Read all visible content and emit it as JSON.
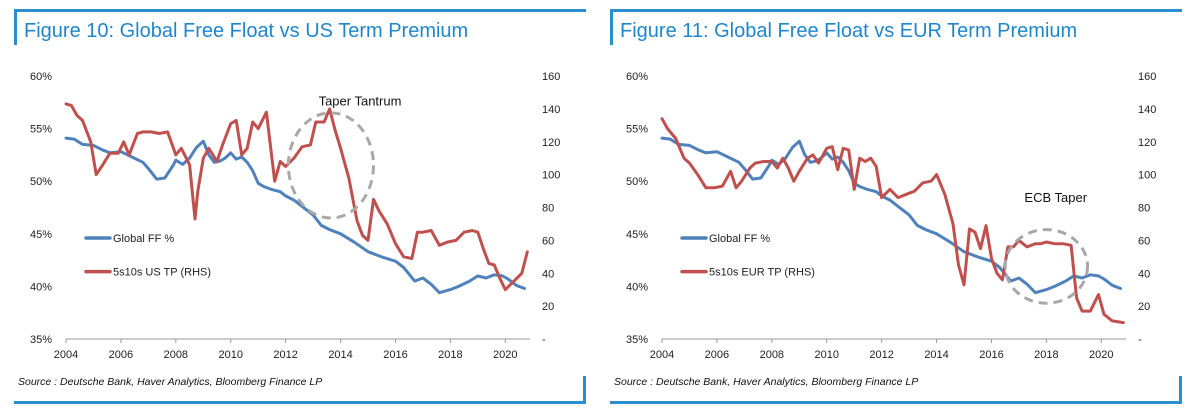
{
  "chart_data": [
    {
      "type": "line",
      "title": "Figure 10: Global Free Float vs US Term Premium",
      "source": "Source : Deutsche Bank, Haver Analytics, Bloomberg Finance LP",
      "annotation": "Taper Tantrum",
      "highlight_range": {
        "x": [
          2012.1,
          2015.2
        ],
        "y_left": [
          46.5,
          56.5
        ]
      },
      "x_ticks": [
        2004,
        2006,
        2008,
        2010,
        2012,
        2014,
        2016,
        2018,
        2020
      ],
      "x_tick_labels": [
        "2004",
        "2006",
        "2008",
        "2010",
        "2012",
        "2014",
        "2016",
        "2018",
        "2020"
      ],
      "xlim": [
        2004,
        2020.9
      ],
      "y_left_ticks": [
        35,
        40,
        45,
        50,
        55,
        60
      ],
      "y_left_tick_labels": [
        "35%",
        "40%",
        "45%",
        "50%",
        "55%",
        "60%"
      ],
      "ylim_left": [
        35,
        60
      ],
      "y_right_ticks": [
        0,
        20,
        40,
        60,
        80,
        100,
        120,
        140,
        160
      ],
      "y_right_tick_labels": [
        "-",
        "20",
        "40",
        "60",
        "80",
        "100",
        "120",
        "140",
        "160"
      ],
      "ylim_right": [
        0,
        160
      ],
      "series": [
        {
          "name": "Global FF %",
          "axis": "left",
          "color": "#4f81bd",
          "x": [
            2004,
            2004.3,
            2004.6,
            2005,
            2005.3,
            2005.6,
            2006,
            2006.4,
            2006.8,
            2007,
            2007.3,
            2007.6,
            2007.9,
            2008,
            2008.25,
            2008.5,
            2008.75,
            2009,
            2009.2,
            2009.4,
            2009.6,
            2009.8,
            2010,
            2010.2,
            2010.4,
            2010.6,
            2010.8,
            2011,
            2011.2,
            2011.5,
            2011.8,
            2012,
            2012.3,
            2012.6,
            2013,
            2013.3,
            2013.6,
            2014,
            2014.5,
            2015,
            2015.5,
            2016,
            2016.3,
            2016.7,
            2017,
            2017.3,
            2017.6,
            2018,
            2018.3,
            2018.7,
            2019,
            2019.3,
            2019.6,
            2019.9,
            2020.1,
            2020.4,
            2020.7
          ],
          "values": [
            54.1,
            54.0,
            53.5,
            53.4,
            53.0,
            52.7,
            52.8,
            52.3,
            51.8,
            51.2,
            50.2,
            50.3,
            51.5,
            52.0,
            51.6,
            52.2,
            53.2,
            53.8,
            52.5,
            51.8,
            51.9,
            52.2,
            52.7,
            52.1,
            52.3,
            51.8,
            51.0,
            49.8,
            49.5,
            49.2,
            49.0,
            48.6,
            48.2,
            47.6,
            46.8,
            45.8,
            45.4,
            45.0,
            44.2,
            43.3,
            42.8,
            42.4,
            41.8,
            40.5,
            40.8,
            40.2,
            39.4,
            39.7,
            40.0,
            40.5,
            41.0,
            40.8,
            41.1,
            41.0,
            40.7,
            40.1,
            39.8
          ]
        },
        {
          "name": "5s10s US TP (RHS)",
          "axis": "right",
          "color": "#c0504d",
          "x": [
            2004,
            2004.2,
            2004.4,
            2004.6,
            2004.9,
            2005.1,
            2005.3,
            2005.6,
            2005.9,
            2006.1,
            2006.3,
            2006.6,
            2006.8,
            2007.1,
            2007.4,
            2007.7,
            2008,
            2008.2,
            2008.5,
            2008.7,
            2008.8,
            2009,
            2009.2,
            2009.5,
            2009.7,
            2010,
            2010.2,
            2010.4,
            2010.6,
            2010.8,
            2011,
            2011.3,
            2011.6,
            2011.8,
            2012,
            2012.3,
            2012.6,
            2012.9,
            2013.1,
            2013.4,
            2013.6,
            2013.8,
            2014,
            2014.3,
            2014.6,
            2014.8,
            2015,
            2015.2,
            2015.4,
            2015.7,
            2016,
            2016.3,
            2016.6,
            2016.8,
            2017,
            2017.3,
            2017.6,
            2017.9,
            2018.2,
            2018.5,
            2018.8,
            2019,
            2019.2,
            2019.4,
            2019.6,
            2019.8,
            2020,
            2020.3,
            2020.6,
            2020.8
          ],
          "values": [
            143,
            142,
            136,
            133,
            120,
            100,
            105,
            113,
            113,
            120,
            112,
            125,
            126,
            126,
            125,
            126,
            112,
            116,
            106,
            73,
            90,
            110,
            116,
            108,
            118,
            131,
            133,
            112,
            116,
            132,
            128,
            138,
            96,
            108,
            105,
            110,
            117,
            118,
            132,
            132,
            140,
            127,
            116,
            98,
            72,
            63,
            60,
            85,
            78,
            70,
            58,
            50,
            49,
            65,
            65,
            66,
            57,
            59,
            60,
            65,
            66,
            65,
            55,
            46,
            45,
            37,
            30,
            35,
            40,
            53
          ]
        }
      ]
    },
    {
      "type": "line",
      "title": "Figure 11: Global Free Float vs EUR Term Premium",
      "source": "Source : Deutsche Bank, Haver Analytics, Bloomberg Finance LP",
      "annotation": "ECB Taper",
      "highlight_range": {
        "x": [
          2016.5,
          2019.5
        ],
        "y_left": [
          38.4,
          45.4
        ]
      },
      "x_ticks": [
        2004,
        2006,
        2008,
        2010,
        2012,
        2014,
        2016,
        2018,
        2020
      ],
      "x_tick_labels": [
        "2004",
        "2006",
        "2008",
        "2010",
        "2012",
        "2014",
        "2016",
        "2018",
        "2020"
      ],
      "xlim": [
        2004,
        2020.9
      ],
      "y_left_ticks": [
        35,
        40,
        45,
        50,
        55,
        60
      ],
      "y_left_tick_labels": [
        "35%",
        "40%",
        "45%",
        "50%",
        "55%",
        "60%"
      ],
      "ylim_left": [
        35,
        60
      ],
      "y_right_ticks": [
        0,
        20,
        40,
        60,
        80,
        100,
        120,
        140,
        160
      ],
      "y_right_tick_labels": [
        "-",
        "20",
        "40",
        "60",
        "80",
        "100",
        "120",
        "140",
        "160"
      ],
      "ylim_right": [
        0,
        160
      ],
      "series": [
        {
          "name": "Global FF %",
          "axis": "left",
          "color": "#4f81bd",
          "x": [
            2004,
            2004.3,
            2004.6,
            2005,
            2005.3,
            2005.6,
            2006,
            2006.4,
            2006.8,
            2007,
            2007.3,
            2007.6,
            2007.9,
            2008,
            2008.25,
            2008.5,
            2008.75,
            2009,
            2009.2,
            2009.4,
            2009.6,
            2009.8,
            2010,
            2010.2,
            2010.4,
            2010.6,
            2010.8,
            2011,
            2011.2,
            2011.5,
            2011.8,
            2012,
            2012.3,
            2012.6,
            2013,
            2013.3,
            2013.6,
            2014,
            2014.5,
            2015,
            2015.5,
            2016,
            2016.3,
            2016.7,
            2017,
            2017.3,
            2017.6,
            2018,
            2018.3,
            2018.7,
            2019,
            2019.3,
            2019.6,
            2019.9,
            2020.1,
            2020.4,
            2020.7
          ],
          "values": [
            54.1,
            54.0,
            53.5,
            53.4,
            53.0,
            52.7,
            52.8,
            52.3,
            51.8,
            51.2,
            50.2,
            50.3,
            51.5,
            52.0,
            51.6,
            52.2,
            53.2,
            53.8,
            52.5,
            51.8,
            51.9,
            52.2,
            52.7,
            52.1,
            52.3,
            51.8,
            51.0,
            49.8,
            49.5,
            49.2,
            49.0,
            48.6,
            48.2,
            47.6,
            46.8,
            45.8,
            45.4,
            45.0,
            44.2,
            43.3,
            42.8,
            42.4,
            41.8,
            40.5,
            40.8,
            40.2,
            39.4,
            39.7,
            40.0,
            40.5,
            41.0,
            40.8,
            41.1,
            41.0,
            40.7,
            40.1,
            39.8
          ]
        },
        {
          "name": "5s10s EUR TP (RHS)",
          "axis": "right",
          "color": "#c0504d",
          "x": [
            2004,
            2004.2,
            2004.5,
            2004.8,
            2005,
            2005.3,
            2005.6,
            2005.9,
            2006.2,
            2006.5,
            2006.7,
            2006.9,
            2007.2,
            2007.4,
            2007.7,
            2008,
            2008.2,
            2008.4,
            2008.6,
            2008.8,
            2009,
            2009.3,
            2009.5,
            2009.7,
            2010,
            2010.2,
            2010.4,
            2010.6,
            2010.8,
            2011,
            2011.2,
            2011.4,
            2011.6,
            2011.8,
            2012,
            2012.3,
            2012.6,
            2012.9,
            2013.2,
            2013.5,
            2013.8,
            2014,
            2014.3,
            2014.6,
            2014.8,
            2015,
            2015.2,
            2015.4,
            2015.6,
            2015.8,
            2016,
            2016.2,
            2016.4,
            2016.6,
            2016.8,
            2017,
            2017.3,
            2017.6,
            2017.8,
            2018,
            2018.3,
            2018.6,
            2018.9,
            2019.1,
            2019.3,
            2019.6,
            2019.9,
            2020.1,
            2020.4,
            2020.8
          ],
          "values": [
            134,
            128,
            122,
            110,
            107,
            100,
            92,
            92,
            93,
            102,
            92,
            96,
            104,
            107,
            108,
            108,
            104,
            110,
            104,
            96,
            102,
            110,
            112,
            107,
            116,
            117,
            103,
            116,
            115,
            91,
            110,
            108,
            110,
            105,
            86,
            91,
            86,
            88,
            90,
            95,
            96,
            100,
            88,
            70,
            45,
            33,
            67,
            65,
            55,
            69,
            49,
            40,
            36,
            56,
            56,
            60,
            56,
            58,
            58,
            59,
            58,
            58,
            57,
            25,
            17,
            17,
            27,
            15,
            11,
            10
          ]
        }
      ]
    }
  ]
}
